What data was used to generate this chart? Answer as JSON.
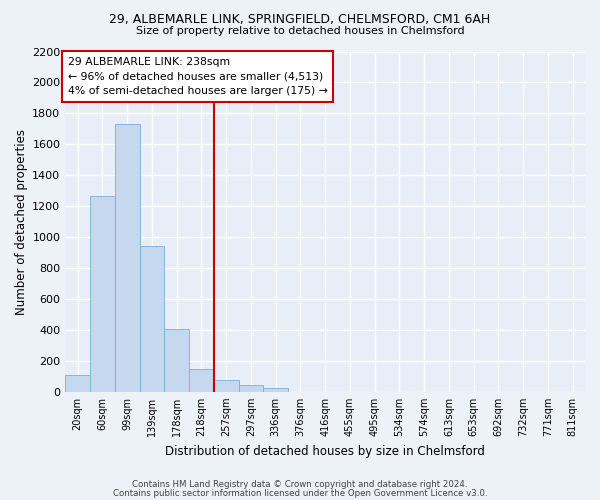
{
  "title": "29, ALBEMARLE LINK, SPRINGFIELD, CHELMSFORD, CM1 6AH",
  "subtitle": "Size of property relative to detached houses in Chelmsford",
  "xlabel": "Distribution of detached houses by size in Chelmsford",
  "ylabel": "Number of detached properties",
  "bar_color": "#c5d8ed",
  "bar_edge_color": "#7aafd4",
  "background_color": "#e8eef7",
  "grid_color": "#ffffff",
  "fig_bg_color": "#edf1f8",
  "categories": [
    "20sqm",
    "60sqm",
    "99sqm",
    "139sqm",
    "178sqm",
    "218sqm",
    "257sqm",
    "297sqm",
    "336sqm",
    "376sqm",
    "416sqm",
    "455sqm",
    "495sqm",
    "534sqm",
    "574sqm",
    "613sqm",
    "653sqm",
    "692sqm",
    "732sqm",
    "771sqm",
    "811sqm"
  ],
  "values": [
    107,
    1265,
    1730,
    940,
    405,
    150,
    75,
    42,
    22,
    0,
    0,
    0,
    0,
    0,
    0,
    0,
    0,
    0,
    0,
    0,
    0
  ],
  "ylim": [
    0,
    2200
  ],
  "yticks": [
    0,
    200,
    400,
    600,
    800,
    1000,
    1200,
    1400,
    1600,
    1800,
    2000,
    2200
  ],
  "vline_color": "#cc0000",
  "annotation_text": "29 ALBEMARLE LINK: 238sqm\n← 96% of detached houses are smaller (4,513)\n4% of semi-detached houses are larger (175) →",
  "annotation_box_color": "#ffffff",
  "annotation_box_edge_color": "#cc0000",
  "footer_line1": "Contains HM Land Registry data © Crown copyright and database right 2024.",
  "footer_line2": "Contains public sector information licensed under the Open Government Licence v3.0.",
  "figsize": [
    6.0,
    5.0
  ],
  "dpi": 100
}
